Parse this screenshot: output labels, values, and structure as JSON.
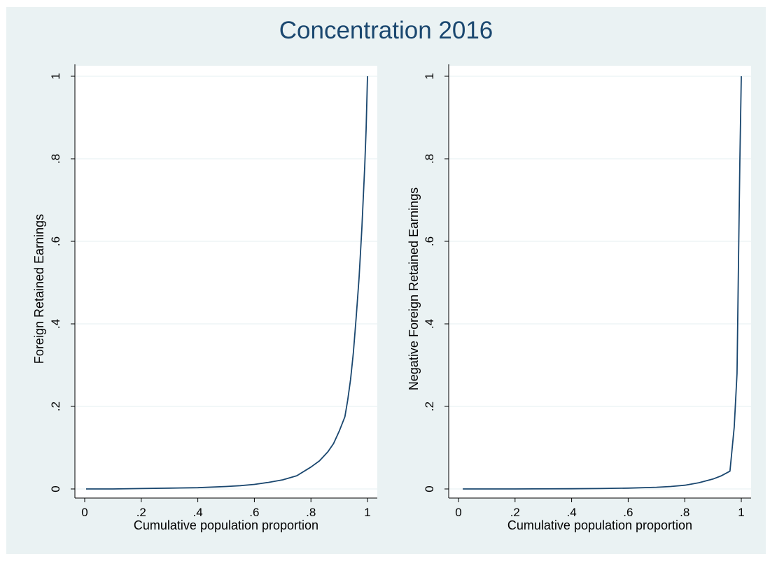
{
  "title": "Concentration 2016",
  "colors": {
    "background": "#eaf2f3",
    "plot_area": "#ffffff",
    "gridline": "#eaf2f3",
    "line": "#1a476f",
    "title": "#1a476f"
  },
  "chart_data": [
    {
      "type": "line",
      "xlabel": "Cumulative population proportion",
      "ylabel": "Foreign Retained Earnings",
      "xlim": [
        0,
        1
      ],
      "ylim": [
        0,
        1
      ],
      "xticks": [
        0,
        0.2,
        0.4,
        0.6,
        0.8,
        1
      ],
      "xtick_labels": [
        "0",
        ".2",
        ".4",
        ".6",
        ".8",
        "1"
      ],
      "yticks": [
        0,
        0.2,
        0.4,
        0.6,
        0.8,
        1
      ],
      "ytick_labels": [
        "0",
        ".2",
        ".4",
        ".6",
        ".8",
        "1"
      ],
      "grid": true,
      "x": [
        0.005,
        0.1,
        0.2,
        0.3,
        0.4,
        0.5,
        0.55,
        0.6,
        0.65,
        0.7,
        0.75,
        0.8,
        0.83,
        0.86,
        0.88,
        0.9,
        0.92,
        0.93,
        0.94,
        0.95,
        0.96,
        0.97,
        0.98,
        0.99,
        0.995,
        1.0
      ],
      "y": [
        0,
        0,
        0.001,
        0.002,
        0.003,
        0.006,
        0.008,
        0.011,
        0.016,
        0.022,
        0.032,
        0.053,
        0.068,
        0.09,
        0.11,
        0.14,
        0.175,
        0.215,
        0.265,
        0.33,
        0.415,
        0.51,
        0.63,
        0.78,
        0.87,
        1.0
      ]
    },
    {
      "type": "line",
      "xlabel": "Cumulative population proportion",
      "ylabel": "Negative Foreign Retained Earnings",
      "xlim": [
        0,
        1
      ],
      "ylim": [
        0,
        1
      ],
      "xticks": [
        0,
        0.2,
        0.4,
        0.6,
        0.8,
        1
      ],
      "xtick_labels": [
        "0",
        ".2",
        ".4",
        ".6",
        ".8",
        "1"
      ],
      "yticks": [
        0,
        0.2,
        0.4,
        0.6,
        0.8,
        1
      ],
      "ytick_labels": [
        "0",
        ".2",
        ".4",
        ".6",
        ".8",
        "1"
      ],
      "grid": true,
      "x": [
        0.015,
        0.2,
        0.4,
        0.5,
        0.6,
        0.7,
        0.75,
        0.8,
        0.85,
        0.9,
        0.93,
        0.96,
        0.975,
        0.985,
        0.99,
        0.995,
        1.0
      ],
      "y": [
        0,
        0,
        0.0005,
        0.001,
        0.002,
        0.004,
        0.006,
        0.009,
        0.015,
        0.024,
        0.032,
        0.043,
        0.15,
        0.28,
        0.55,
        0.8,
        1.0
      ]
    }
  ]
}
